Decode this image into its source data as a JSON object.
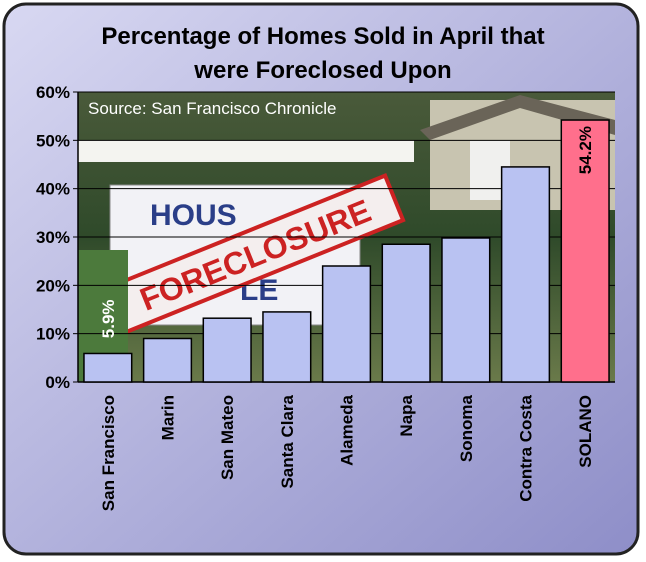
{
  "chart_data": {
    "type": "bar",
    "title": "Percentage of Homes Sold in April that were Foreclosed Upon",
    "annotation": "Source: San Francisco Chronicle",
    "categories": [
      "San Francisco",
      "Marin",
      "San Mateo",
      "Santa Clara",
      "Alameda",
      "Napa",
      "Sonoma",
      "Contra Costa",
      "SOLANO"
    ],
    "values": [
      5.9,
      9,
      13.2,
      14.5,
      24,
      28.5,
      29.8,
      44.5,
      54.2
    ],
    "value_labels": [
      "5.9%",
      null,
      null,
      null,
      null,
      null,
      null,
      null,
      "54.2%"
    ],
    "colors": [
      "#b9c2f2",
      "#b9c2f2",
      "#b9c2f2",
      "#b9c2f2",
      "#b9c2f2",
      "#b9c2f2",
      "#b9c2f2",
      "#b9c2f2",
      "#ff6f8c"
    ],
    "ylim": [
      0,
      60
    ],
    "yticks": [
      {
        "value": 0,
        "label": "0%"
      },
      {
        "value": 10,
        "label": "10%"
      },
      {
        "value": 20,
        "label": "20%"
      },
      {
        "value": 30,
        "label": "30%"
      },
      {
        "value": 40,
        "label": "40%"
      },
      {
        "value": 50,
        "label": "50%"
      },
      {
        "value": 60,
        "label": "60%"
      }
    ],
    "grid": true
  }
}
